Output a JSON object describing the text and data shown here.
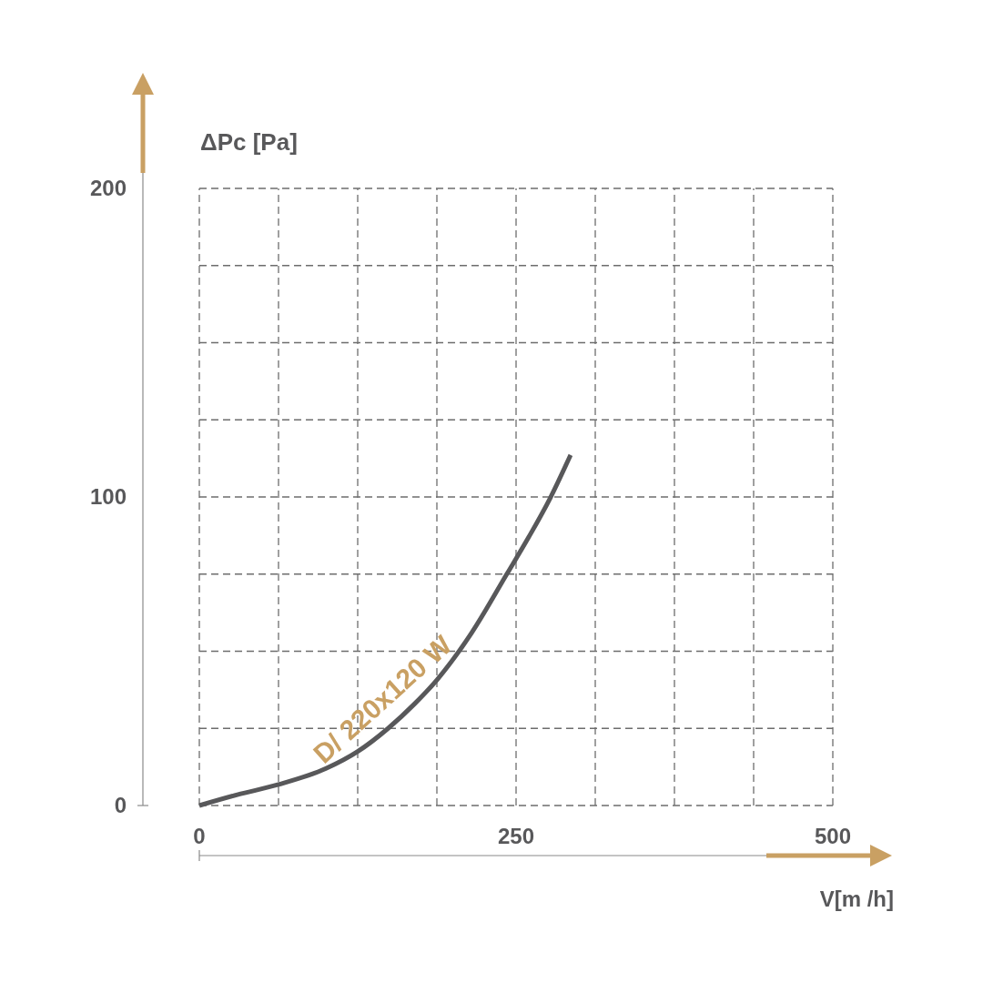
{
  "chart_data": {
    "type": "line",
    "xlabel": "V[m /h]",
    "ylabel": "ΔPc [Pa]",
    "xlim": [
      0,
      500
    ],
    "ylim": [
      0,
      200
    ],
    "xticks": [
      0,
      {
        "value": 62.5,
        "label": null
      },
      {
        "value": 125,
        "label": null
      },
      {
        "value": 187.5,
        "label": null
      },
      250,
      {
        "value": 312.5,
        "label": null
      },
      {
        "value": 375,
        "label": null
      },
      {
        "value": 437.5,
        "label": null
      },
      500
    ],
    "yticks": [
      0,
      {
        "value": 25,
        "label": null
      },
      {
        "value": 50,
        "label": null
      },
      {
        "value": 75,
        "label": null
      },
      100,
      {
        "value": 125,
        "label": null
      },
      {
        "value": 150,
        "label": null
      },
      {
        "value": 175,
        "label": null
      },
      200
    ],
    "grid": true,
    "series": [
      {
        "name": "D/ 220x120 W",
        "color": "#58585a",
        "x": [
          0,
          30,
          62.5,
          100,
          125,
          149,
          170,
          187.5,
          215,
          243,
          260,
          277,
          293
        ],
        "values": [
          0,
          3.5,
          6.8,
          12,
          17.5,
          25,
          33,
          40.7,
          56,
          75.2,
          87,
          99.7,
          113.6
        ]
      }
    ]
  }
}
